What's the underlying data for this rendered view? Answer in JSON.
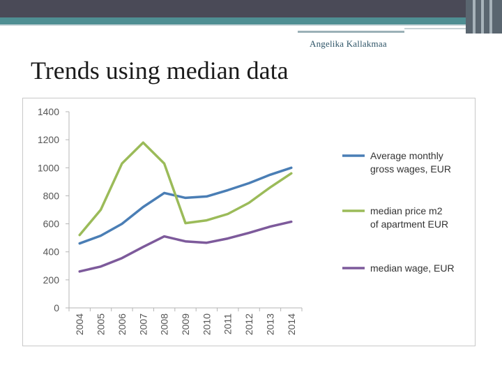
{
  "header": {
    "author": "Angelika Kallakmaa",
    "title": "Trends using median data"
  },
  "colors": {
    "band_dark": "#4a4a57",
    "band_teal": "#4f8f93",
    "series_wages": "#4a7eb5",
    "series_apartment": "#9bbb59",
    "series_median_wage": "#7d5a9b"
  },
  "chart_data": {
    "type": "line",
    "title": "",
    "xlabel": "",
    "ylabel": "",
    "ylim": [
      0,
      1400
    ],
    "yticks": [
      "0",
      "200",
      "400",
      "600",
      "800",
      "1000",
      "1200",
      "1400"
    ],
    "categories": [
      "2004",
      "2005",
      "2006",
      "2007",
      "2008",
      "2009",
      "2010",
      "2011",
      "2012",
      "2013",
      "2014"
    ],
    "legend_position": "right",
    "series": [
      {
        "name": "Average monthly gross wages, EUR",
        "legend_lines": [
          "Average monthly",
          "gross wages, EUR"
        ],
        "color": "#4a7eb5",
        "values": [
          460,
          515,
          600,
          720,
          820,
          785,
          795,
          840,
          890,
          950,
          1000
        ]
      },
      {
        "name": "median price m2 of apartment EUR",
        "legend_lines": [
          "median price m2",
          "of apartment EUR"
        ],
        "color": "#9bbb59",
        "values": [
          520,
          700,
          1030,
          1180,
          1030,
          605,
          625,
          670,
          750,
          860,
          960
        ]
      },
      {
        "name": "median wage, EUR",
        "legend_lines": [
          "median wage, EUR"
        ],
        "color": "#7d5a9b",
        "values": [
          260,
          295,
          355,
          435,
          510,
          475,
          465,
          495,
          535,
          580,
          615
        ]
      }
    ]
  }
}
